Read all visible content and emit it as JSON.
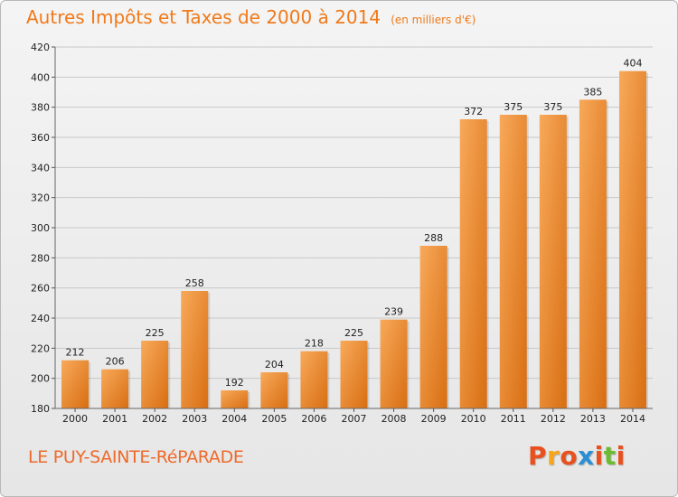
{
  "header": {
    "title": "Autres Impôts et Taxes de 2000 à 2014",
    "unit": "(en milliers d'€)"
  },
  "footer": {
    "commune": "LE PUY-SAINTE-RéPARADE",
    "logo": "Proxiti",
    "logo_letters": [
      "P",
      "r",
      "o",
      "x",
      "i",
      "t",
      "i"
    ],
    "logo_colors": [
      "#e8501e",
      "#f7a51c",
      "#e8501e",
      "#2b8fd6",
      "#e8501e",
      "#6cbc2f",
      "#e8501e"
    ]
  },
  "colors": {
    "bar_light": "#f8a95a",
    "bar_dark": "#d86e12",
    "accent": "#f07a1a",
    "grid": "#c8c8c8",
    "axis_text": "#222222"
  },
  "chart_data": {
    "type": "bar",
    "title": "Autres Impôts et Taxes de 2000 à 2014",
    "subtitle": "(en milliers d'€)",
    "xlabel": "",
    "ylabel": "",
    "categories": [
      "2000",
      "2001",
      "2002",
      "2003",
      "2004",
      "2005",
      "2006",
      "2007",
      "2008",
      "2009",
      "2010",
      "2011",
      "2012",
      "2013",
      "2014"
    ],
    "values": [
      212,
      206,
      225,
      258,
      192,
      204,
      218,
      225,
      239,
      288,
      372,
      375,
      375,
      385,
      404
    ],
    "ylim": [
      180,
      420
    ],
    "yticks": [
      180,
      200,
      220,
      240,
      260,
      280,
      300,
      320,
      340,
      360,
      380,
      400,
      420
    ],
    "grid": true,
    "data_labels": true
  }
}
